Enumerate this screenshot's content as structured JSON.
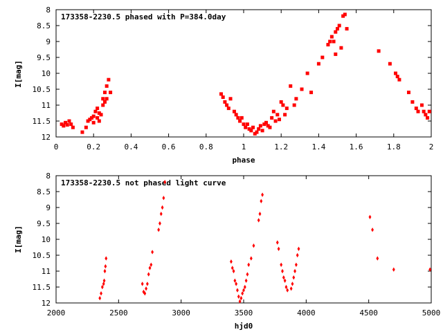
{
  "chart_data": [
    {
      "type": "scatter",
      "title": "173358-2230.5 phased with P=384.0day",
      "xlabel": "phase",
      "ylabel": "I[mag]",
      "xlim": [
        0,
        2
      ],
      "ylim": [
        12,
        8
      ],
      "y_inverted": true,
      "xticks": [
        "0",
        "0.2",
        "0.4",
        "0.6",
        "0.8",
        "1",
        "1.2",
        "1.4",
        "1.6",
        "1.8",
        "2"
      ],
      "xtick_values": [
        0,
        0.2,
        0.4,
        0.6,
        0.8,
        1.0,
        1.2,
        1.4,
        1.6,
        1.8,
        2.0
      ],
      "yticks": [
        "8",
        "8.5",
        "9",
        "9.5",
        "10",
        "10.5",
        "11",
        "11.5",
        "12"
      ],
      "ytick_values": [
        8,
        8.5,
        9,
        9.5,
        10,
        10.5,
        11,
        11.5,
        12
      ],
      "marker_color": "#ff0000",
      "points": [
        [
          0.03,
          11.6
        ],
        [
          0.04,
          11.65
        ],
        [
          0.05,
          11.55
        ],
        [
          0.06,
          11.62
        ],
        [
          0.07,
          11.5
        ],
        [
          0.08,
          11.6
        ],
        [
          0.09,
          11.7
        ],
        [
          0.14,
          11.85
        ],
        [
          0.16,
          11.7
        ],
        [
          0.17,
          11.5
        ],
        [
          0.18,
          11.45
        ],
        [
          0.19,
          11.4
        ],
        [
          0.2,
          11.55
        ],
        [
          0.2,
          11.35
        ],
        [
          0.21,
          11.2
        ],
        [
          0.22,
          11.1
        ],
        [
          0.22,
          11.4
        ],
        [
          0.23,
          11.25
        ],
        [
          0.23,
          11.5
        ],
        [
          0.24,
          11.3
        ],
        [
          0.25,
          10.8
        ],
        [
          0.25,
          11.0
        ],
        [
          0.26,
          10.9
        ],
        [
          0.26,
          10.6
        ],
        [
          0.27,
          10.8
        ],
        [
          0.27,
          10.4
        ],
        [
          0.28,
          10.2
        ],
        [
          0.29,
          10.6
        ],
        [
          0.88,
          10.65
        ],
        [
          0.89,
          10.75
        ],
        [
          0.9,
          10.9
        ],
        [
          0.91,
          11.0
        ],
        [
          0.92,
          11.1
        ],
        [
          0.93,
          10.8
        ],
        [
          0.95,
          11.2
        ],
        [
          0.96,
          11.3
        ],
        [
          0.97,
          11.4
        ],
        [
          0.98,
          11.5
        ],
        [
          0.99,
          11.4
        ],
        [
          1.0,
          11.6
        ],
        [
          1.01,
          11.7
        ],
        [
          1.02,
          11.6
        ],
        [
          1.03,
          11.75
        ],
        [
          1.04,
          11.8
        ],
        [
          1.05,
          11.7
        ],
        [
          1.06,
          11.9
        ],
        [
          1.07,
          11.85
        ],
        [
          1.08,
          11.75
        ],
        [
          1.09,
          11.65
        ],
        [
          1.1,
          11.8
        ],
        [
          1.11,
          11.6
        ],
        [
          1.12,
          11.55
        ],
        [
          1.13,
          11.65
        ],
        [
          1.14,
          11.7
        ],
        [
          1.15,
          11.4
        ],
        [
          1.16,
          11.2
        ],
        [
          1.17,
          11.5
        ],
        [
          1.18,
          11.3
        ],
        [
          1.19,
          11.45
        ],
        [
          1.2,
          10.9
        ],
        [
          1.21,
          11.0
        ],
        [
          1.22,
          11.3
        ],
        [
          1.23,
          11.1
        ],
        [
          1.25,
          10.4
        ],
        [
          1.27,
          11.0
        ],
        [
          1.28,
          10.8
        ],
        [
          1.31,
          10.5
        ],
        [
          1.34,
          10.0
        ],
        [
          1.36,
          10.6
        ],
        [
          1.4,
          9.7
        ],
        [
          1.42,
          9.5
        ],
        [
          1.45,
          9.1
        ],
        [
          1.46,
          9.0
        ],
        [
          1.47,
          8.85
        ],
        [
          1.48,
          9.0
        ],
        [
          1.49,
          8.7
        ],
        [
          1.5,
          8.6
        ],
        [
          1.51,
          8.5
        ],
        [
          1.49,
          9.4
        ],
        [
          1.52,
          9.2
        ],
        [
          1.53,
          8.2
        ],
        [
          1.54,
          8.15
        ],
        [
          1.55,
          8.6
        ],
        [
          1.72,
          9.3
        ],
        [
          1.78,
          9.7
        ],
        [
          1.81,
          10.0
        ],
        [
          1.82,
          10.1
        ],
        [
          1.83,
          10.2
        ],
        [
          1.88,
          10.6
        ],
        [
          1.9,
          10.9
        ],
        [
          1.92,
          11.1
        ],
        [
          1.93,
          11.2
        ],
        [
          1.95,
          11.0
        ],
        [
          1.96,
          11.2
        ],
        [
          1.97,
          11.3
        ],
        [
          1.98,
          11.4
        ],
        [
          1.99,
          11.2
        ]
      ]
    },
    {
      "type": "scatter",
      "title": "173358-2230.5 not phased light curve",
      "xlabel": "hjd0",
      "ylabel": "I[mag]",
      "xlim": [
        2000,
        5000
      ],
      "ylim": [
        12,
        8
      ],
      "y_inverted": true,
      "xticks": [
        "2000",
        "2500",
        "3000",
        "3500",
        "4000",
        "4500",
        "5000"
      ],
      "xtick_values": [
        2000,
        2500,
        3000,
        3500,
        4000,
        4500,
        5000
      ],
      "yticks": [
        "8",
        "8.5",
        "9",
        "9.5",
        "10",
        "10.5",
        "11",
        "11.5",
        "12"
      ],
      "ytick_values": [
        8,
        8.5,
        9,
        9.5,
        10,
        10.5,
        11,
        11.5,
        12
      ],
      "marker_color": "#ff0000",
      "points": [
        [
          2350,
          11.85
        ],
        [
          2360,
          11.7
        ],
        [
          2370,
          11.5
        ],
        [
          2380,
          11.4
        ],
        [
          2385,
          11.3
        ],
        [
          2390,
          11.0
        ],
        [
          2395,
          10.85
        ],
        [
          2400,
          10.6
        ],
        [
          2690,
          11.4
        ],
        [
          2700,
          11.65
        ],
        [
          2710,
          11.7
        ],
        [
          2720,
          11.55
        ],
        [
          2730,
          11.4
        ],
        [
          2740,
          11.1
        ],
        [
          2750,
          10.9
        ],
        [
          2760,
          10.8
        ],
        [
          2770,
          10.4
        ],
        [
          2820,
          9.7
        ],
        [
          2830,
          9.5
        ],
        [
          2840,
          9.2
        ],
        [
          2850,
          9.0
        ],
        [
          2860,
          8.7
        ],
        [
          2870,
          8.2
        ],
        [
          3400,
          10.7
        ],
        [
          3410,
          10.9
        ],
        [
          3420,
          11.0
        ],
        [
          3430,
          11.3
        ],
        [
          3440,
          11.4
        ],
        [
          3450,
          11.6
        ],
        [
          3460,
          11.8
        ],
        [
          3470,
          11.95
        ],
        [
          3480,
          11.85
        ],
        [
          3490,
          11.7
        ],
        [
          3500,
          11.6
        ],
        [
          3510,
          11.5
        ],
        [
          3520,
          11.3
        ],
        [
          3530,
          11.1
        ],
        [
          3540,
          10.8
        ],
        [
          3560,
          10.6
        ],
        [
          3580,
          10.2
        ],
        [
          3620,
          9.4
        ],
        [
          3630,
          9.2
        ],
        [
          3640,
          8.8
        ],
        [
          3650,
          8.6
        ],
        [
          3770,
          10.1
        ],
        [
          3780,
          10.3
        ],
        [
          3800,
          10.8
        ],
        [
          3810,
          11.0
        ],
        [
          3820,
          11.2
        ],
        [
          3830,
          11.3
        ],
        [
          3840,
          11.5
        ],
        [
          3850,
          11.6
        ],
        [
          3880,
          11.55
        ],
        [
          3890,
          11.4
        ],
        [
          3900,
          11.2
        ],
        [
          3910,
          11.0
        ],
        [
          3920,
          10.8
        ],
        [
          3930,
          10.5
        ],
        [
          3940,
          10.3
        ],
        [
          4510,
          9.3
        ],
        [
          4530,
          9.7
        ],
        [
          4570,
          10.6
        ],
        [
          4700,
          10.95
        ],
        [
          4990,
          10.95
        ]
      ]
    }
  ]
}
